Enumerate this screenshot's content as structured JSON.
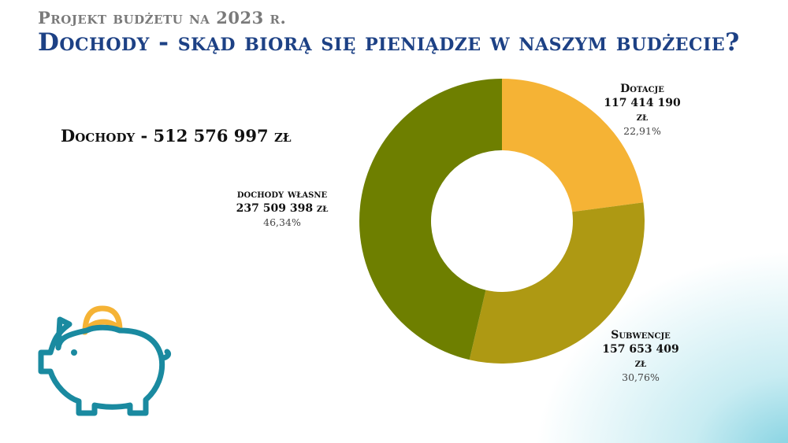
{
  "header": {
    "subtitle": "Projekt budżetu na 2023 r.",
    "title": "Dochody - skąd biorą się pieniądze w naszym budżecie?"
  },
  "total_label": "Dochody - 512 576 997 zł",
  "chart_data": {
    "type": "pie",
    "donut": true,
    "title": "Dochody - 512 576 997 zł",
    "slices": [
      {
        "name": "Dotacje",
        "amount": "117 414 190 zł",
        "percent_label": "22,91%",
        "value": 22.91,
        "color": "#F5B335"
      },
      {
        "name": "Subwencje",
        "amount": "157 653 409 zł",
        "percent_label": "30,76%",
        "value": 30.76,
        "color": "#AE9913"
      },
      {
        "name": "dochody własne",
        "amount": "237 509 398 zł",
        "percent_label": "46,34%",
        "value": 46.34,
        "color": "#6E7F00"
      }
    ]
  },
  "icons": {
    "piggy": "piggy-bank-icon",
    "colors": {
      "body": "#1a8aa0",
      "coin": "#F5B335"
    }
  }
}
